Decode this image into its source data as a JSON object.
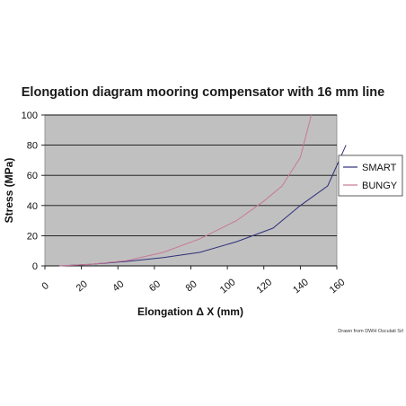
{
  "chart_data": {
    "type": "line",
    "title": "Elongation diagram mooring compensator with 16 mm line",
    "xlabel": "Elongation Δ X (mm)",
    "ylabel": "Stress (MPa)",
    "xlim": [
      0,
      160
    ],
    "ylim": [
      0,
      100
    ],
    "x_ticks": [
      "0",
      "20",
      "40",
      "60",
      "80",
      "100",
      "120",
      "140",
      "160"
    ],
    "y_ticks": [
      "0",
      "20",
      "40",
      "60",
      "80",
      "100"
    ],
    "grid": true,
    "legend": "right",
    "background": "#c0c0c0",
    "series": [
      {
        "name": "SMART",
        "color": "#2f2f7a",
        "points": [
          [
            8,
            0
          ],
          [
            25,
            1
          ],
          [
            45,
            3
          ],
          [
            65,
            5.5
          ],
          [
            85,
            9
          ],
          [
            105,
            16
          ],
          [
            125,
            25
          ],
          [
            140,
            40
          ],
          [
            155,
            53
          ],
          [
            165,
            80
          ]
        ]
      },
      {
        "name": "BUNGY",
        "color": "#c87896",
        "points": [
          [
            8,
            0
          ],
          [
            25,
            1
          ],
          [
            45,
            3.5
          ],
          [
            65,
            9
          ],
          [
            85,
            18
          ],
          [
            105,
            30
          ],
          [
            120,
            43
          ],
          [
            130,
            53
          ],
          [
            140,
            72
          ],
          [
            146,
            100
          ]
        ]
      }
    ]
  },
  "footer": {
    "credit": "Drawn from DWH Osculati Srl"
  }
}
